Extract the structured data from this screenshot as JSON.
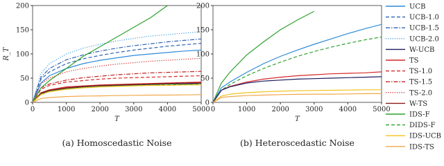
{
  "chart_data": [
    {
      "type": "line",
      "caption": "(a) Homoscedastic Noise",
      "xlabel": "T",
      "ylabel": "R_T",
      "x": [
        0,
        250,
        500,
        1000,
        1500,
        2000,
        2500,
        3000,
        3500,
        4000,
        4500,
        5000
      ],
      "xlim": [
        0,
        5000
      ],
      "ylim": [
        0,
        200
      ],
      "xticks": [
        0,
        1000,
        2000,
        3000,
        4000,
        5000
      ],
      "yticks": [
        0,
        50,
        100,
        150,
        200
      ],
      "series": [
        {
          "name": "UCB",
          "color": "#2b8ad8",
          "style": "solid",
          "values": [
            0,
            40,
            55,
            70,
            80,
            87,
            92,
            97,
            100,
            103,
            106,
            108
          ]
        },
        {
          "name": "UCB-1.0",
          "color": "#2c62b5",
          "style": "dashed",
          "values": [
            0,
            48,
            63,
            80,
            90,
            97,
            103,
            108,
            112,
            116,
            119,
            122
          ]
        },
        {
          "name": "UCB-1.5",
          "color": "#2c62b5",
          "style": "dashdot",
          "values": [
            0,
            52,
            70,
            88,
            98,
            106,
            112,
            117,
            121,
            125,
            128,
            131
          ]
        },
        {
          "name": "UCB-2.0",
          "color": "#3fa0e0",
          "style": "dotted",
          "values": [
            0,
            60,
            80,
            100,
            112,
            120,
            127,
            132,
            137,
            140,
            143,
            146
          ]
        },
        {
          "name": "W-UCB",
          "color": "#1c1c5e",
          "style": "solid",
          "values": [
            0,
            18,
            24,
            29,
            32,
            34,
            35,
            36,
            37,
            38,
            38,
            39
          ]
        },
        {
          "name": "TS",
          "color": "#d62728",
          "style": "solid",
          "values": [
            0,
            20,
            26,
            32,
            34,
            36,
            37,
            38,
            39,
            40,
            41,
            42
          ]
        },
        {
          "name": "TS-1.0",
          "color": "#d62728",
          "style": "dashed",
          "values": [
            0,
            27,
            35,
            42,
            45,
            48,
            50,
            51,
            52,
            53,
            54,
            55
          ]
        },
        {
          "name": "TS-1.5",
          "color": "#c42020",
          "style": "dashdot",
          "values": [
            0,
            30,
            38,
            46,
            51,
            54,
            57,
            59,
            61,
            62,
            63,
            64
          ]
        },
        {
          "name": "TS-2.0",
          "color": "#d62728",
          "style": "dotted",
          "values": [
            0,
            38,
            50,
            63,
            70,
            75,
            79,
            82,
            85,
            87,
            89,
            91
          ]
        },
        {
          "name": "W-TS",
          "color": "#8b1a1a",
          "style": "solid",
          "values": [
            0,
            19,
            25,
            30,
            33,
            35,
            36,
            37,
            38,
            39,
            40,
            40
          ]
        },
        {
          "name": "IDS-F",
          "color": "#2ca02c",
          "style": "solid",
          "values": [
            0,
            30,
            45,
            70,
            95,
            115,
            135,
            155,
            175,
            200,
            null,
            null
          ]
        },
        {
          "name": "DIDS-F",
          "color": "#2ca02c",
          "style": "dashed",
          "values": [
            0,
            17,
            23,
            28,
            31,
            33,
            34,
            35,
            36,
            37,
            37,
            38
          ]
        },
        {
          "name": "IDS-UCB",
          "color": "#f2c21a",
          "style": "solid",
          "values": [
            0,
            16,
            22,
            27,
            30,
            32,
            33,
            34,
            35,
            35,
            36,
            36
          ]
        },
        {
          "name": "IDS-TS",
          "color": "#f0a848",
          "style": "solid",
          "values": [
            0,
            8,
            10,
            12,
            13,
            13.5,
            14,
            14.5,
            15,
            15,
            15.5,
            16
          ]
        }
      ]
    },
    {
      "type": "line",
      "caption": "(b) Heteroscedastic Noise",
      "xlabel": "T",
      "x": [
        0,
        250,
        500,
        1000,
        1500,
        2000,
        2500,
        3000,
        3500,
        4000,
        4500,
        5000
      ],
      "xlim": [
        0,
        5000
      ],
      "ylim": [
        0,
        200
      ],
      "xticks": [
        0,
        1000,
        2000,
        3000,
        4000,
        5000
      ],
      "yticks": [
        0,
        50,
        100,
        150,
        200
      ],
      "series": [
        {
          "color": "#2ca02c",
          "style": "solid",
          "values": [
            0,
            40,
            62,
            98,
            125,
            150,
            170,
            188,
            null,
            null,
            null,
            null
          ]
        },
        {
          "color": "#2b8ad8",
          "style": "solid",
          "values": [
            0,
            30,
            42,
            62,
            80,
            95,
            108,
            120,
            131,
            142,
            152,
            161
          ]
        },
        {
          "color": "#2ca02c",
          "style": "dashed",
          "values": [
            0,
            25,
            37,
            55,
            70,
            83,
            95,
            105,
            114,
            122,
            129,
            135
          ]
        },
        {
          "color": "#d62728",
          "style": "solid",
          "values": [
            0,
            25,
            33,
            42,
            48,
            52,
            55,
            57,
            59,
            60,
            61,
            63
          ]
        },
        {
          "color": "#1c1c5e",
          "style": "solid",
          "values": [
            0,
            25,
            32,
            40,
            44,
            46,
            48,
            49,
            50,
            51,
            52,
            53
          ]
        },
        {
          "color": "#f2c21a",
          "style": "solid",
          "values": [
            0,
            13,
            17,
            20,
            22,
            23,
            24,
            24.5,
            25,
            25.5,
            26,
            26
          ]
        },
        {
          "color": "#f0a848",
          "style": "solid",
          "values": [
            0,
            10,
            12,
            14,
            15,
            16,
            16.5,
            17,
            17,
            17.5,
            18,
            18
          ]
        }
      ]
    }
  ]
}
